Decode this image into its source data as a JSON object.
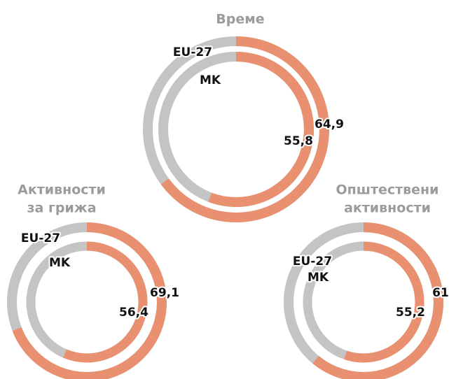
{
  "chart_data": [
    {
      "type": "radial",
      "title": [
        "Време"
      ],
      "ylim": [
        0,
        100
      ],
      "track_color": "#c4c4c4",
      "series": [
        {
          "name": "EU-27",
          "color": "#e8906f",
          "values": [
            64.9
          ],
          "value_labels": [
            "64,9"
          ]
        },
        {
          "name": "MK",
          "color": "#e8906f",
          "values": [
            55.8
          ],
          "value_labels": [
            "55,8"
          ]
        }
      ]
    },
    {
      "type": "radial",
      "title": [
        "Активности",
        "за грижа"
      ],
      "ylim": [
        0,
        100
      ],
      "track_color": "#c4c4c4",
      "series": [
        {
          "name": "EU-27",
          "color": "#e8906f",
          "values": [
            69.1
          ],
          "value_labels": [
            "69,1"
          ]
        },
        {
          "name": "MK",
          "color": "#e8906f",
          "values": [
            56.4
          ],
          "value_labels": [
            "56,4"
          ]
        }
      ]
    },
    {
      "type": "radial",
      "title": [
        "Општествени",
        "активности"
      ],
      "ylim": [
        0,
        100
      ],
      "track_color": "#c4c4c4",
      "series": [
        {
          "name": "EU-27",
          "color": "#e8906f",
          "values": [
            61
          ]
        },
        {
          "name": "MK",
          "color": "#e8906f",
          "values": [
            55.2
          ],
          "value_labels": [
            "55,2"
          ]
        }
      ]
    }
  ]
}
